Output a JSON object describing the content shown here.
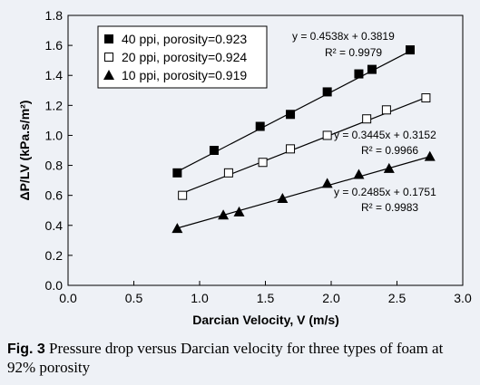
{
  "chart_data": {
    "type": "scatter",
    "xlabel": "Darcian Velocity, V (m/s)",
    "ylabel": "ΔP/LV (kPa.s/m²)",
    "xlim": [
      0.0,
      3.0
    ],
    "ylim": [
      0.0,
      1.8
    ],
    "xticks": [
      "0.0",
      "0.5",
      "1.0",
      "1.5",
      "2.0",
      "2.5",
      "3.0"
    ],
    "yticks": [
      "0.0",
      "0.2",
      "0.4",
      "0.6",
      "0.8",
      "1.0",
      "1.2",
      "1.4",
      "1.6",
      "1.8"
    ],
    "legend_position": "top-left",
    "grid": false,
    "series": [
      {
        "name": "40 ppi, porosity=0.923",
        "marker": "filled-square",
        "x": [
          0.83,
          1.11,
          1.46,
          1.69,
          1.97,
          2.21,
          2.31,
          2.6
        ],
        "y": [
          0.75,
          0.9,
          1.06,
          1.14,
          1.29,
          1.41,
          1.44,
          1.57
        ],
        "fit": {
          "slope": 0.4538,
          "intercept": 0.3819,
          "equation": "y = 0.4538x + 0.3819",
          "r2": "R² = 0.9979"
        }
      },
      {
        "name": "20 ppi, porosity=0.924",
        "marker": "open-square",
        "x": [
          0.87,
          1.22,
          1.48,
          1.69,
          1.97,
          2.27,
          2.42,
          2.72
        ],
        "y": [
          0.6,
          0.75,
          0.82,
          0.91,
          1.0,
          1.11,
          1.17,
          1.25
        ],
        "fit": {
          "slope": 0.3445,
          "intercept": 0.3152,
          "equation": "y = 0.3445x + 0.3152",
          "r2": "R² = 0.9966"
        }
      },
      {
        "name": "10 ppi, porosity=0.919",
        "marker": "filled-triangle",
        "x": [
          0.83,
          1.18,
          1.3,
          1.63,
          1.97,
          2.21,
          2.44,
          2.75
        ],
        "y": [
          0.38,
          0.47,
          0.49,
          0.58,
          0.68,
          0.74,
          0.78,
          0.86
        ],
        "fit": {
          "slope": 0.2485,
          "intercept": 0.1751,
          "equation": "y = 0.2485x + 0.1751",
          "r2": "R² = 0.9983"
        }
      }
    ]
  },
  "caption": {
    "label": "Fig. 3",
    "text": "Pressure drop versus Darcian velocity for three types of foam at 92% porosity"
  }
}
